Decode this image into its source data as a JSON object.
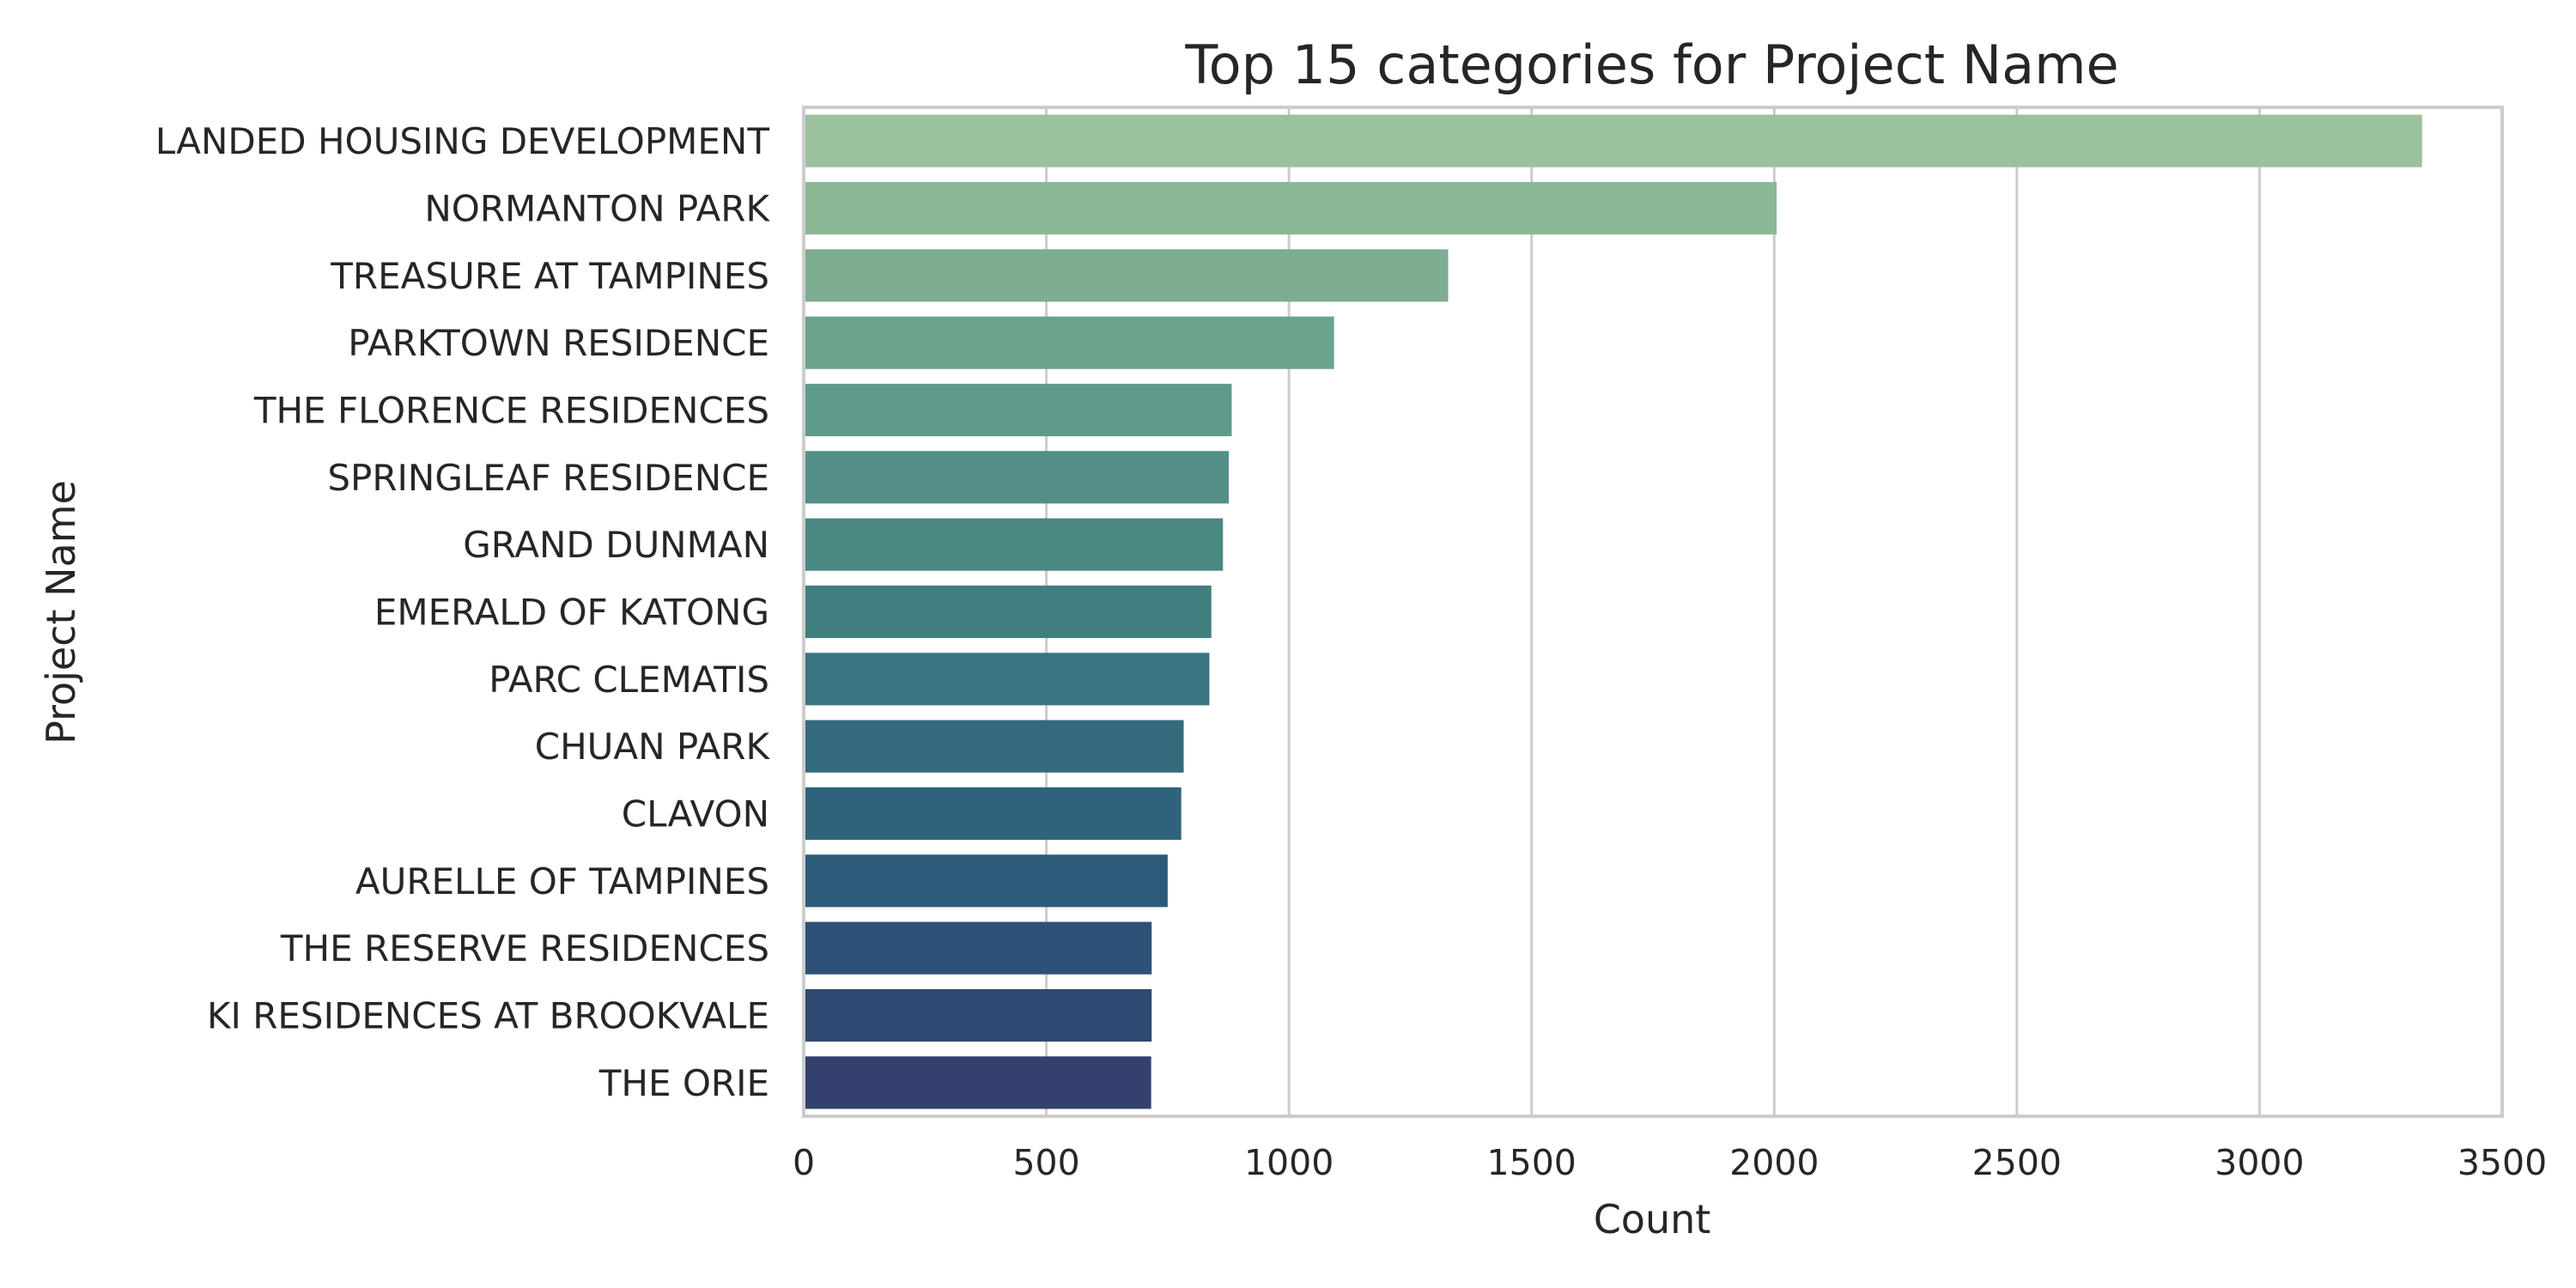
{
  "chart_data": {
    "type": "bar",
    "orientation": "horizontal",
    "title": "Top 15 categories for Project Name",
    "xlabel": "Count",
    "ylabel": "Project Name",
    "xlim": [
      0,
      3500
    ],
    "xticks": [
      0,
      500,
      1000,
      1500,
      2000,
      2500,
      3000,
      3500
    ],
    "grid": true,
    "grid_axis": "x",
    "categories": [
      "LANDED HOUSING DEVELOPMENT",
      "NORMANTON PARK",
      "TREASURE AT TAMPINES",
      "PARKTOWN RESIDENCE",
      "THE FLORENCE RESIDENCES",
      "SPRINGLEAF RESIDENCE",
      "GRAND DUNMAN",
      "EMERALD OF KATONG",
      "PARC CLEMATIS",
      "CHUAN PARK",
      "CLAVON",
      "AURELLE OF TAMPINES",
      "THE RESERVE RESIDENCES",
      "KI RESIDENCES AT BROOKVALE",
      "THE ORIE"
    ],
    "values": [
      3335,
      2005,
      1328,
      1093,
      882,
      876,
      864,
      840,
      836,
      783,
      778,
      750,
      717,
      717,
      716
    ],
    "colors": [
      "#9bc29c",
      "#8bb894",
      "#7cae91",
      "#6ca38d",
      "#5f9b8b",
      "#548f87",
      "#4a8884",
      "#417e80",
      "#3a7480",
      "#336b7d",
      "#2e637b",
      "#2c5a79",
      "#2d5177",
      "#2f4973",
      "#34416e"
    ]
  }
}
